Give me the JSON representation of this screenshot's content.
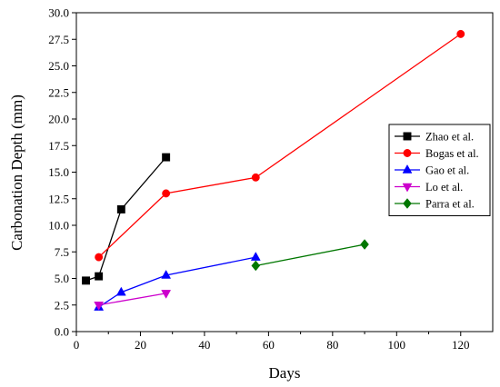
{
  "chart_data": {
    "type": "line",
    "xlabel": "Days",
    "ylabel": "Carbonation Depth (mm)",
    "xlim": [
      0,
      130
    ],
    "ylim": [
      0,
      30
    ],
    "x_ticks": [
      "0",
      "20",
      "40",
      "60",
      "80",
      "100",
      "120"
    ],
    "y_ticks": [
      "0.0",
      "2.5",
      "5.0",
      "7.5",
      "10.0",
      "12.5",
      "15.0",
      "17.5",
      "20.0",
      "22.5",
      "25.0",
      "27.5",
      "30.0"
    ],
    "grid": false,
    "legend_position": "right",
    "series": [
      {
        "name": "Zhao et al.",
        "color": "#000000",
        "marker": "square",
        "points": [
          [
            3,
            4.8
          ],
          [
            7,
            5.2
          ],
          [
            14,
            11.5
          ],
          [
            28,
            16.4
          ]
        ]
      },
      {
        "name": "Bogas et al.",
        "color": "#ff0000",
        "marker": "circle",
        "points": [
          [
            7,
            7.0
          ],
          [
            28,
            13.0
          ],
          [
            56,
            14.5
          ],
          [
            120,
            28.0
          ]
        ]
      },
      {
        "name": "Gao et al.",
        "color": "#0000ff",
        "marker": "triangle-up",
        "points": [
          [
            7,
            2.3
          ],
          [
            14,
            3.7
          ],
          [
            28,
            5.3
          ],
          [
            56,
            7.0
          ]
        ]
      },
      {
        "name": "Lo et al.",
        "color": "#cc00cc",
        "marker": "triangle-down",
        "points": [
          [
            7,
            2.5
          ],
          [
            28,
            3.6
          ]
        ]
      },
      {
        "name": "Parra et al.",
        "color": "#007700",
        "marker": "diamond",
        "points": [
          [
            56,
            6.2
          ],
          [
            90,
            8.2
          ]
        ]
      }
    ]
  }
}
